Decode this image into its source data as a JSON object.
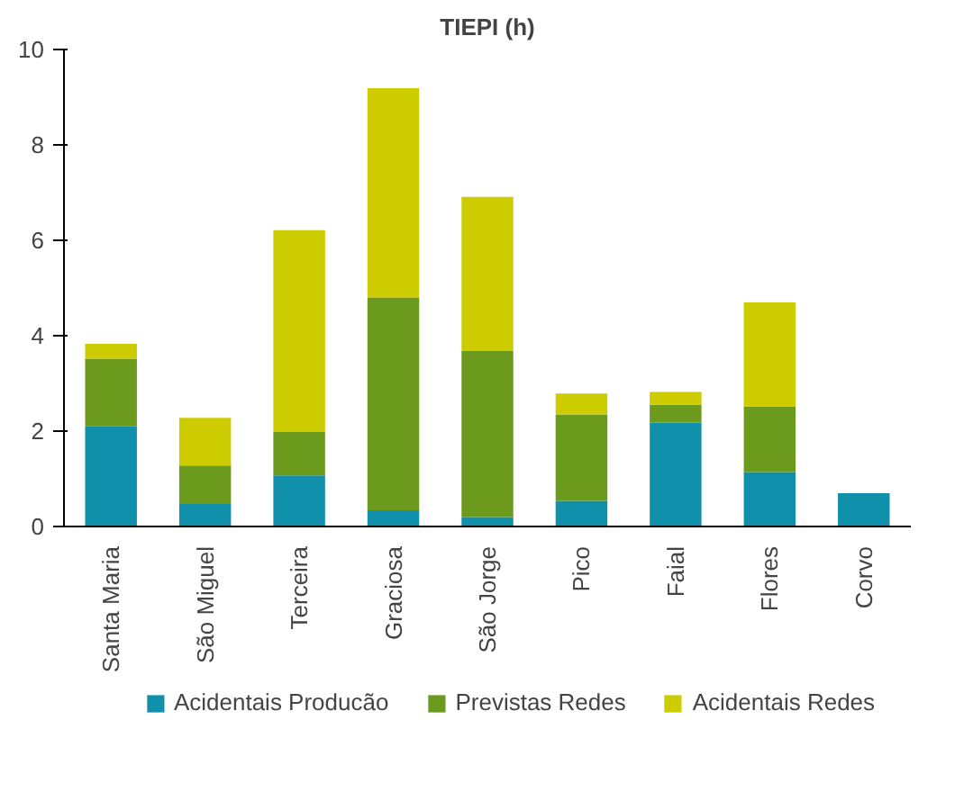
{
  "chart_data": {
    "type": "bar",
    "title": "TIEPI (h)",
    "stacked": true,
    "categories": [
      "Santa Maria",
      "São Miguel",
      "Terceira",
      "Graciosa",
      "São Jorge",
      "Pico",
      "Faial",
      "Flores",
      "Corvo"
    ],
    "series": [
      {
        "name": "Acidentais Producão",
        "color": "#1090ab",
        "values": [
          2.1,
          0.47,
          1.07,
          0.34,
          0.2,
          0.54,
          2.18,
          1.14,
          0.7
        ]
      },
      {
        "name": "Previstas Redes",
        "color": "#6b9a1c",
        "values": [
          1.42,
          0.81,
          0.91,
          4.46,
          3.49,
          1.81,
          0.37,
          1.38,
          0
        ]
      },
      {
        "name": "Acidentais Redes",
        "color": "#cccc00",
        "values": [
          0.31,
          1.0,
          4.23,
          4.39,
          3.22,
          0.44,
          0.27,
          2.18,
          0
        ]
      }
    ],
    "ylim": [
      0,
      10
    ],
    "yticks": [
      0,
      2,
      4,
      6,
      8,
      10
    ],
    "grid": false,
    "legend": "bottom"
  }
}
